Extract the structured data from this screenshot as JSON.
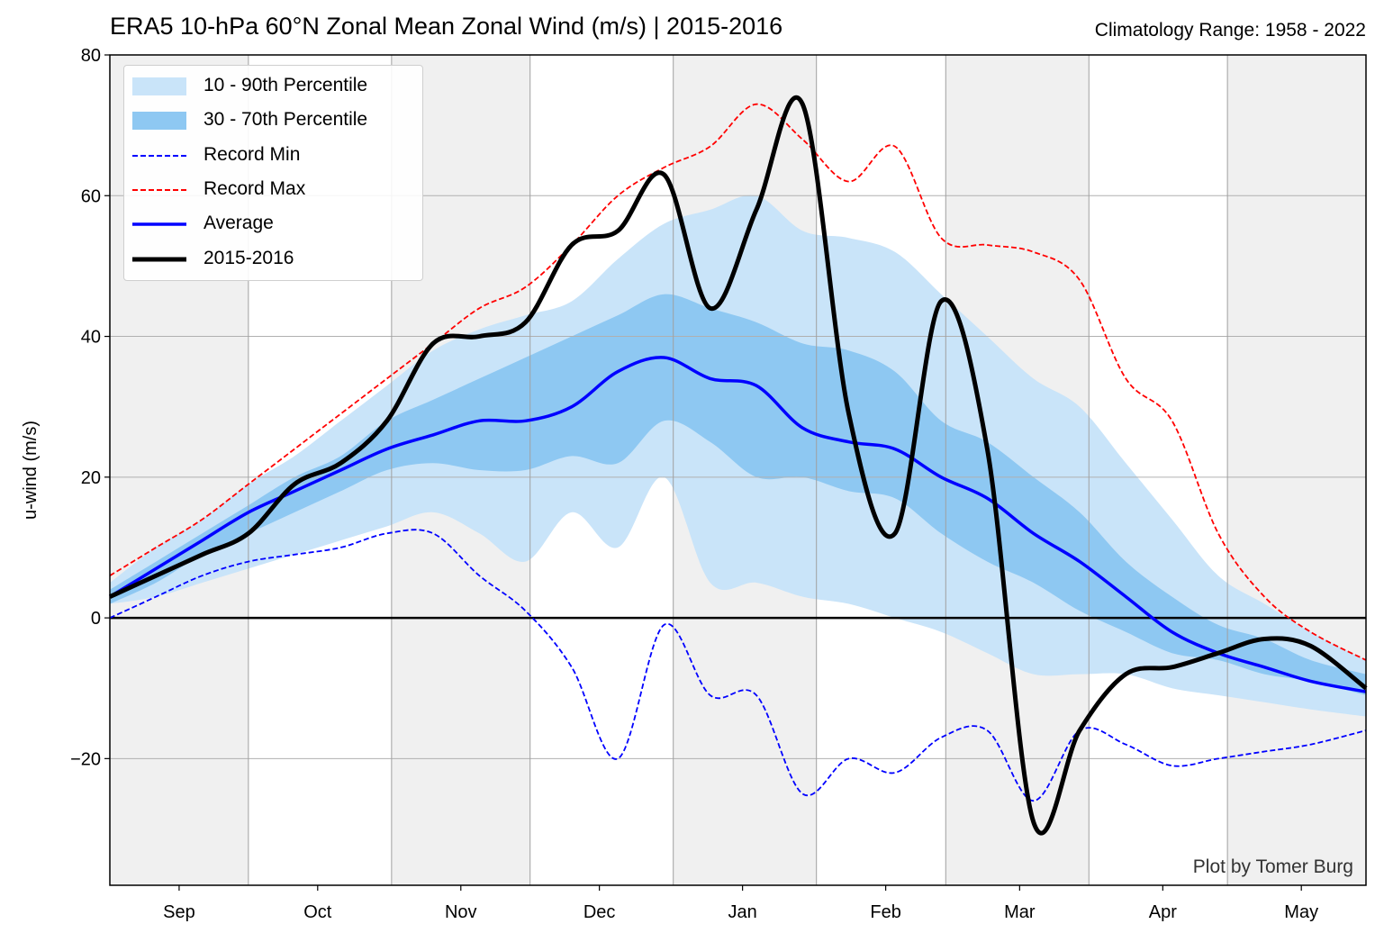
{
  "title": "ERA5 10-hPa 60°N Zonal Mean Zonal Wind (m/s) | 2015-2016",
  "subtitle": "Climatology Range: 1958 - 2022",
  "credit": "Plot by Tomer Burg",
  "colors": {
    "p10_90": "#c9e4f9",
    "p30_70": "#8ec8f2",
    "record_min": "#0000ff",
    "record_max": "#ff0000",
    "average": "#0000ff",
    "current": "#000000",
    "shade": "#f0f0f0",
    "grid": "#b0b0b0"
  },
  "legend": [
    {
      "label": "10 - 90th Percentile",
      "kind": "fill",
      "color": "#c9e4f9"
    },
    {
      "label": "30 - 70th Percentile",
      "kind": "fill",
      "color": "#8ec8f2"
    },
    {
      "label": "Record Min",
      "kind": "dash",
      "color": "#0000ff"
    },
    {
      "label": "Record Max",
      "kind": "dash",
      "color": "#ff0000"
    },
    {
      "label": "Average",
      "kind": "line",
      "color": "#0000ff"
    },
    {
      "label": "2015-2016",
      "kind": "thick",
      "color": "#000000"
    }
  ],
  "chart_data": {
    "type": "area",
    "title": "ERA5 10-hPa 60°N Zonal Mean Zonal Wind (m/s) | 2015-2016",
    "ylabel": "u-wind (m/s)",
    "ylim": [
      -38,
      80
    ],
    "yticks": [
      -20,
      0,
      20,
      40,
      60,
      80
    ],
    "x_start": "Aug 16",
    "x_end": "May 15",
    "month_labels": [
      {
        "label": "Sep",
        "day": 15
      },
      {
        "label": "Oct",
        "day": 45
      },
      {
        "label": "Nov",
        "day": 76
      },
      {
        "label": "Dec",
        "day": 106
      },
      {
        "label": "Jan",
        "day": 137
      },
      {
        "label": "Feb",
        "day": 168
      },
      {
        "label": "Mar",
        "day": 197
      },
      {
        "label": "Apr",
        "day": 228
      },
      {
        "label": "May",
        "day": 258
      }
    ],
    "xlim_days": [
      0,
      272
    ],
    "month_boundaries": [
      30,
      61,
      91,
      122,
      153,
      181,
      212,
      242
    ],
    "grid": true,
    "legend_position": "top-left",
    "x_days": [
      0,
      10,
      20,
      30,
      40,
      50,
      60,
      70,
      80,
      90,
      100,
      110,
      120,
      130,
      140,
      150,
      160,
      170,
      180,
      190,
      200,
      210,
      220,
      230,
      240,
      250,
      260,
      272
    ],
    "series": [
      {
        "name": "Average",
        "values": [
          3,
          7,
          11,
          15,
          18,
          21,
          24,
          26,
          28,
          28,
          30,
          35,
          37,
          34,
          33,
          27,
          25,
          24,
          20,
          17,
          12,
          8,
          3,
          -2,
          -5,
          -7,
          -9,
          -10.5
        ]
      },
      {
        "name": "Record Max",
        "values": [
          6,
          10,
          14,
          19,
          24,
          29,
          34,
          39,
          44,
          47,
          53,
          60,
          64,
          67,
          73,
          68,
          62,
          67,
          54,
          53,
          52,
          48,
          34,
          28,
          12,
          3,
          -2,
          -6
        ]
      },
      {
        "name": "Record Min",
        "values": [
          0,
          3,
          6,
          8,
          9,
          10,
          12,
          12,
          6,
          1,
          -7,
          -20,
          -1,
          -11,
          -11,
          -25,
          -20,
          -22,
          -17,
          -16,
          -26,
          -16,
          -18,
          -21,
          -20,
          -19,
          -18,
          -16
        ]
      },
      {
        "name": "2015-2016",
        "values": [
          3,
          6,
          9,
          12,
          19,
          22,
          28,
          39,
          40,
          42,
          53,
          55,
          63,
          44,
          58,
          73,
          29,
          12,
          45,
          24,
          -29,
          -16,
          -8,
          -7,
          -5,
          -3,
          -4,
          -10
        ]
      },
      {
        "name": "10 - 90th Percentile",
        "lower": [
          2,
          3,
          5,
          7,
          9,
          11,
          13,
          15,
          12,
          8,
          15,
          10,
          20,
          5,
          5,
          3,
          2,
          0,
          -2,
          -5,
          -8,
          -8,
          -8,
          -10,
          -11,
          -12,
          -13,
          -14
        ],
        "upper": [
          5,
          10,
          14,
          19,
          23,
          28,
          33,
          38,
          41,
          43,
          45,
          51,
          56,
          58,
          60,
          55,
          54,
          52,
          46,
          40,
          34,
          30,
          22,
          14,
          6,
          2,
          -2,
          -6
        ]
      },
      {
        "name": "30 - 70th Percentile",
        "lower": [
          2,
          5,
          9,
          12,
          15,
          18,
          21,
          22,
          21,
          21,
          23,
          22,
          28,
          25,
          20,
          20,
          18,
          17,
          12,
          8,
          5,
          1,
          -2,
          -5,
          -6,
          -8,
          -9,
          -11
        ]
      },
      {
        "name": "30 - 70th Percentile upper",
        "values": [
          4,
          8,
          12,
          16,
          20,
          23,
          28,
          31,
          34,
          37,
          40,
          43,
          46,
          44,
          42,
          39,
          38,
          35,
          28,
          25,
          20,
          15,
          8,
          3,
          -1,
          -3,
          -6,
          -8
        ]
      }
    ]
  }
}
